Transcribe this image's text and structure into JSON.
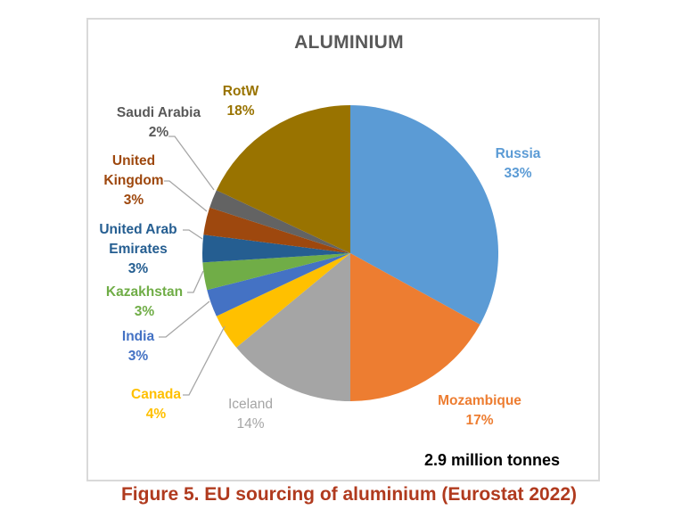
{
  "chart_data": {
    "type": "pie",
    "title": "ALUMINIUM",
    "total_label": "2.9 million tonnes",
    "caption": "Figure 5. EU sourcing of aluminium (Eurostat 2022)",
    "start_angle_deg": 0,
    "direction": "clockwise",
    "slices": [
      {
        "name": "Russia",
        "value": 33,
        "label": "33%",
        "color": "#5b9bd5",
        "label_color": "#5b9bd5"
      },
      {
        "name": "Mozambique",
        "value": 17,
        "label": "17%",
        "color": "#ed7d31",
        "label_color": "#ed7d31"
      },
      {
        "name": "Iceland",
        "value": 14,
        "label": "14%",
        "color": "#a5a5a5",
        "label_color": "#a5a5a5"
      },
      {
        "name": "Canada",
        "value": 4,
        "label": "4%",
        "color": "#ffc000",
        "label_color": "#ffc000"
      },
      {
        "name": "India",
        "value": 3,
        "label": "3%",
        "color": "#4472c4",
        "label_color": "#4472c4"
      },
      {
        "name": "Kazakhstan",
        "value": 3,
        "label": "3%",
        "color": "#70ad47",
        "label_color": "#70ad47"
      },
      {
        "name": "United Arab Emirates",
        "value": 3,
        "label": "3%",
        "color": "#255e91",
        "label_color": "#255e91"
      },
      {
        "name": "United Kingdom",
        "value": 3,
        "label": "3%",
        "color": "#9e480e",
        "label_color": "#9e480e"
      },
      {
        "name": "Saudi Arabia",
        "value": 2,
        "label": "2%",
        "color": "#636363",
        "label_color": "#595959"
      },
      {
        "name": "RotW",
        "value": 18,
        "label": "18%",
        "color": "#997300",
        "label_color": "#997300"
      }
    ],
    "legend": "none (data labels)"
  },
  "labels": {
    "russia": {
      "name": "Russia",
      "pct": "33%"
    },
    "mozambique": {
      "name": "Mozambique",
      "pct": "17%"
    },
    "iceland": {
      "name": "Iceland",
      "pct": "14%"
    },
    "canada": {
      "name": "Canada",
      "pct": "4%"
    },
    "india": {
      "name": "India",
      "pct": "3%"
    },
    "kazakhstan": {
      "name": "Kazakhstan",
      "pct": "3%"
    },
    "uae": {
      "line1": "United Arab",
      "line2": "Emirates",
      "pct": "3%"
    },
    "uk": {
      "line1": "United",
      "line2": "Kingdom",
      "pct": "3%"
    },
    "saudi": {
      "name": "Saudi Arabia",
      "pct": "2%"
    },
    "rotw": {
      "name": "RotW",
      "pct": "18%"
    }
  }
}
